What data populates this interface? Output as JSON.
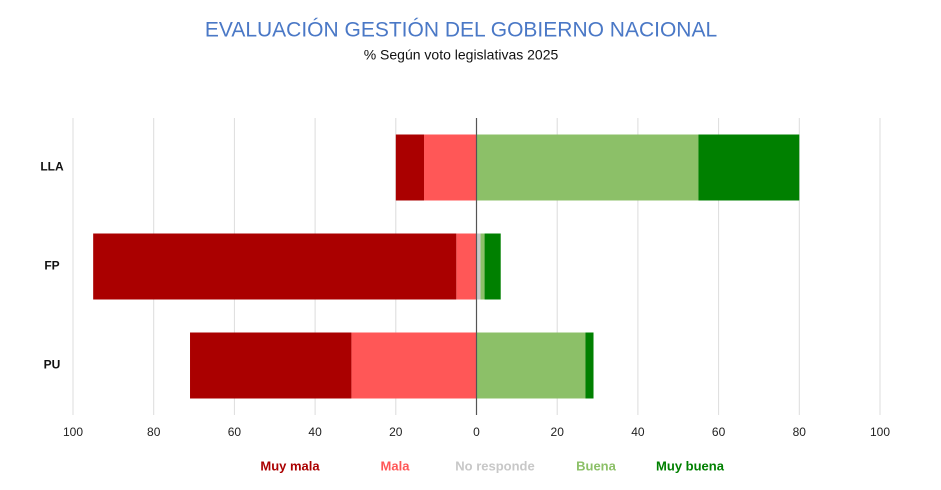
{
  "chart_data": {
    "type": "diverging-bar",
    "title": "EVALUACIÓN GESTIÓN DEL GOBIERNO NACIONAL",
    "subtitle": "% Según voto legislativas 2025",
    "categories": [
      "LLA",
      "FP",
      "PU"
    ],
    "series": [
      {
        "name": "Muy mala",
        "color": "#aa0000",
        "values": [
          -7,
          -90,
          -40
        ]
      },
      {
        "name": "Mala",
        "color": "#ff5757",
        "values": [
          -13,
          -5,
          -31
        ]
      },
      {
        "name": "No responde",
        "color": "#c8c8c8",
        "values": [
          0,
          1,
          0
        ]
      },
      {
        "name": "Buena",
        "color": "#8cc068",
        "values": [
          55,
          1,
          27
        ]
      },
      {
        "name": "Muy buena",
        "color": "#008000",
        "values": [
          25,
          4,
          2
        ]
      }
    ],
    "xlim": [
      -100,
      100
    ],
    "xticks": [
      {
        "value": -100,
        "label": "100"
      },
      {
        "value": -80,
        "label": "80"
      },
      {
        "value": -60,
        "label": "60"
      },
      {
        "value": -40,
        "label": "40"
      },
      {
        "value": -20,
        "label": "20"
      },
      0,
      20,
      40,
      60,
      80,
      100
    ],
    "grid": true
  }
}
